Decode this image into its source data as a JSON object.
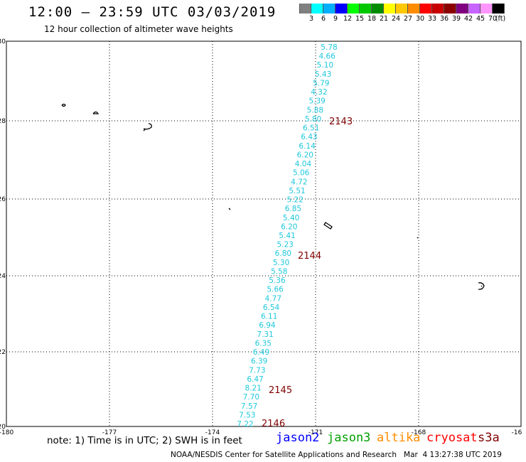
{
  "header": {
    "title": "12:00 — 23:59 UTC 03/03/2019",
    "subtitle": "12 hour collection of altimeter wave heights"
  },
  "scale": {
    "colors": [
      "#808080",
      "#00ffff",
      "#00b0ff",
      "#0000ff",
      "#00ff00",
      "#00c800",
      "#008c00",
      "#ffff00",
      "#ffc800",
      "#ff8c00",
      "#ff0000",
      "#c80000",
      "#8c0000",
      "#800080",
      "#c864ff",
      "#ff96ff",
      "#000000"
    ],
    "labels": [
      "3",
      "6",
      "9",
      "12",
      "15",
      "18",
      "21",
      "24",
      "27",
      "30",
      "33",
      "36",
      "39",
      "42",
      "45",
      "70",
      "(ft)"
    ]
  },
  "map": {
    "x_ticks": [
      "-180",
      "-177",
      "-174",
      "-171",
      "-168",
      "-16"
    ],
    "y_ticks": [
      "30",
      "28",
      "26",
      "24",
      "22",
      "20"
    ],
    "wave_color": "#1ec8dc",
    "label_color": "#800000",
    "wave_heights": [
      "5.78",
      "4.66",
      "5.10",
      "5.43",
      "5.79",
      "4.32",
      "5.39",
      "5.88",
      "5.80",
      "6.51",
      "6.43",
      "6.14",
      "6.20",
      "4.04",
      "5.06",
      "4.72",
      "5.51",
      "5.22",
      "6.85",
      "5.40",
      "6.20",
      "5.41",
      "5.23",
      "6.80",
      "5.30",
      "5.58",
      "5.36",
      "5.66",
      "4.77",
      "6.54",
      "6.11",
      "6.94",
      "7.31",
      "6.35",
      "6.49",
      "6.39",
      "7.73",
      "6.47",
      "8.21",
      "7.70",
      "7.57",
      "7.53",
      "7.22"
    ],
    "track_labels": [
      "2143",
      "2144",
      "2145",
      "2146"
    ]
  },
  "footer": {
    "note": "note: 1) Time is in UTC; 2) SWH is in feet",
    "satellites": [
      {
        "name": "jason2",
        "color": "#0000ff"
      },
      {
        "name": "jason3",
        "color": "#00a000"
      },
      {
        "name": "altika",
        "color": "#ff8c00"
      },
      {
        "name": "cryosat",
        "color": "#ff0000"
      },
      {
        "name": "s3a",
        "color": "#800000"
      }
    ],
    "credit": "NOAA/NESDIS Center for Satellite Applications and Research   Mar  4 13:27:38 UTC 2019"
  }
}
